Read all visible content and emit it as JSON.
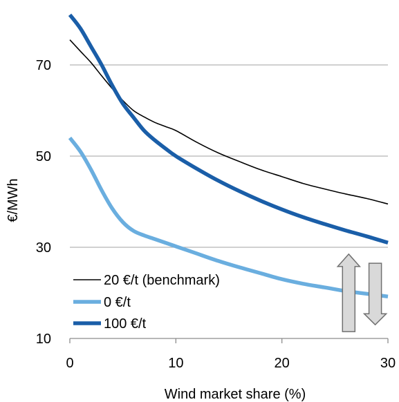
{
  "chart_data": {
    "type": "line",
    "title": "",
    "xlabel": "Wind market share (%)",
    "ylabel": "€/MWh",
    "xlim": [
      0,
      30
    ],
    "ylim": [
      10,
      80
    ],
    "x_ticks": [
      "0",
      "10",
      "20",
      "30"
    ],
    "y_ticks": [
      "10",
      "30",
      "50",
      "70"
    ],
    "grid": "horizontal",
    "legend_position": "bottom-left",
    "series": [
      {
        "name": "20 €/t (benchmark)",
        "color": "#000000",
        "x": [
          0,
          1,
          2,
          3,
          4,
          5,
          6,
          7,
          8,
          9,
          10,
          12,
          14,
          16,
          18,
          20,
          22,
          24,
          26,
          28,
          30
        ],
        "values": [
          75.5,
          73.0,
          70.5,
          67.6,
          64.8,
          62.2,
          60.0,
          58.6,
          57.4,
          56.5,
          55.6,
          53.0,
          50.7,
          48.8,
          47.0,
          45.5,
          44.0,
          42.8,
          41.7,
          40.7,
          39.5
        ]
      },
      {
        "name": "0 €/t",
        "color": "#6aaedf",
        "x": [
          0,
          1,
          2,
          3,
          4,
          5,
          6,
          7,
          8,
          9,
          10,
          12,
          14,
          16,
          18,
          20,
          22,
          24,
          26,
          28,
          30
        ],
        "values": [
          54.0,
          51.0,
          47.0,
          42.5,
          38.5,
          35.5,
          33.6,
          32.6,
          31.8,
          31.0,
          30.2,
          28.6,
          27.0,
          25.6,
          24.3,
          23.0,
          22.0,
          21.2,
          20.4,
          19.8,
          19.2
        ]
      },
      {
        "name": "100 €/t",
        "color": "#1a5ea8",
        "x": [
          0,
          1,
          2,
          3,
          4,
          5,
          6,
          7,
          8,
          9,
          10,
          12,
          14,
          16,
          18,
          20,
          22,
          24,
          26,
          28,
          30
        ],
        "values": [
          81.0,
          78.0,
          74.0,
          70.0,
          65.5,
          61.5,
          58.5,
          55.6,
          53.5,
          51.7,
          50.0,
          47.2,
          44.6,
          42.3,
          40.2,
          38.3,
          36.6,
          35.1,
          33.7,
          32.4,
          31.0
        ]
      }
    ],
    "annotations": [
      {
        "type": "arrow-up",
        "x": 26.3,
        "y_from": 11.5,
        "y_to": 28.5,
        "fill": "#d9d9d9",
        "stroke": "#707070"
      },
      {
        "type": "arrow-down",
        "x": 28.8,
        "y_from": 13.0,
        "y_to": 26.5,
        "fill": "#d9d9d9",
        "stroke": "#707070"
      }
    ]
  }
}
